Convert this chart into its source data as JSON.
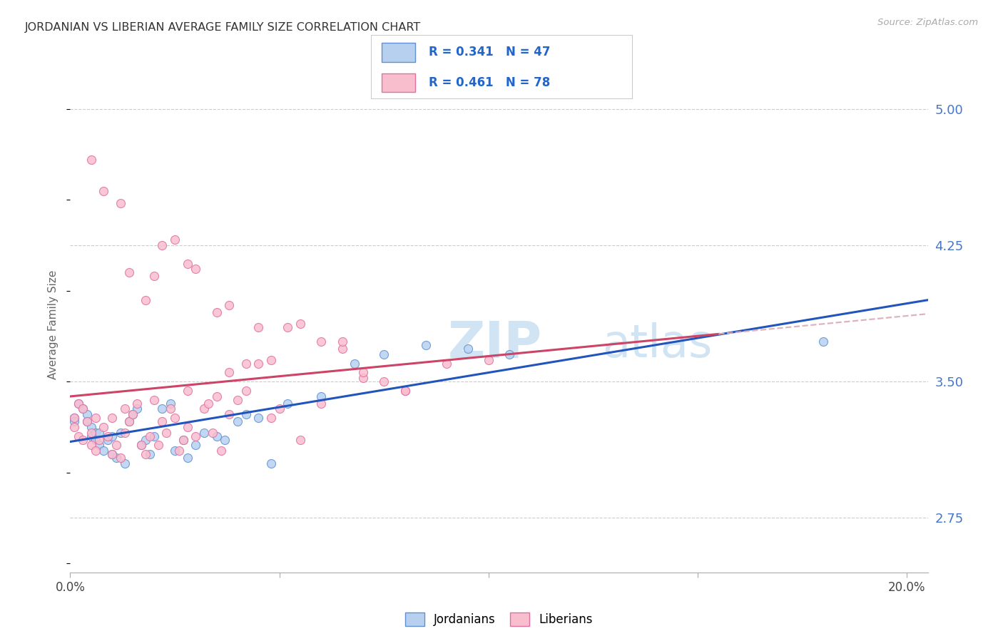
{
  "title": "JORDANIAN VS LIBERIAN AVERAGE FAMILY SIZE CORRELATION CHART",
  "source": "Source: ZipAtlas.com",
  "ylabel": "Average Family Size",
  "xmin": 0.0,
  "xmax": 0.205,
  "ymin": 2.45,
  "ymax": 5.18,
  "ytick_vals": [
    2.75,
    3.5,
    4.25,
    5.0
  ],
  "xtick_positions": [
    0.0,
    0.05,
    0.1,
    0.15,
    0.2
  ],
  "xtick_labels": [
    "0.0%",
    "",
    "",
    "",
    "20.0%"
  ],
  "jordanian_R": "0.341",
  "jordanian_N": "47",
  "liberian_R": "0.461",
  "liberian_N": "78",
  "jordan_face_color": "#b8d0f0",
  "jordan_edge_color": "#6090d0",
  "liberia_face_color": "#f8bece",
  "liberia_edge_color": "#e070a0",
  "jordan_line_color": "#2255bb",
  "liberia_line_color": "#cc4466",
  "dashed_line_color": "#dbaab8",
  "background_color": "#ffffff",
  "grid_color": "#cccccc",
  "title_color": "#333333",
  "right_axis_color": "#4477cc",
  "watermark_color": "#d0e4f4",
  "legend_R_color": "#2266cc",
  "legend_N_color": "#cc2222",
  "scatter_size": 75,
  "jordanians_x": [
    0.001,
    0.001,
    0.002,
    0.003,
    0.004,
    0.004,
    0.005,
    0.005,
    0.006,
    0.006,
    0.007,
    0.007,
    0.008,
    0.009,
    0.01,
    0.01,
    0.011,
    0.012,
    0.013,
    0.014,
    0.015,
    0.016,
    0.017,
    0.018,
    0.019,
    0.02,
    0.022,
    0.024,
    0.025,
    0.027,
    0.028,
    0.03,
    0.032,
    0.035,
    0.037,
    0.04,
    0.042,
    0.045,
    0.048,
    0.052,
    0.06,
    0.068,
    0.075,
    0.085,
    0.095,
    0.105,
    0.18
  ],
  "jordanians_y": [
    3.3,
    3.28,
    3.38,
    3.35,
    3.32,
    3.28,
    3.25,
    3.2,
    3.22,
    3.18,
    3.15,
    3.22,
    3.12,
    3.18,
    3.2,
    3.1,
    3.08,
    3.22,
    3.05,
    3.28,
    3.32,
    3.35,
    3.15,
    3.18,
    3.1,
    3.2,
    3.35,
    3.38,
    3.12,
    3.18,
    3.08,
    3.15,
    3.22,
    3.2,
    3.18,
    3.28,
    3.32,
    3.3,
    3.05,
    3.38,
    3.42,
    3.6,
    3.65,
    3.7,
    3.68,
    3.65,
    3.72
  ],
  "liberians_x": [
    0.001,
    0.001,
    0.002,
    0.002,
    0.003,
    0.003,
    0.004,
    0.005,
    0.005,
    0.006,
    0.006,
    0.007,
    0.008,
    0.009,
    0.01,
    0.01,
    0.011,
    0.012,
    0.013,
    0.013,
    0.014,
    0.015,
    0.016,
    0.017,
    0.018,
    0.019,
    0.02,
    0.021,
    0.022,
    0.023,
    0.024,
    0.025,
    0.026,
    0.027,
    0.028,
    0.03,
    0.032,
    0.033,
    0.034,
    0.035,
    0.036,
    0.038,
    0.04,
    0.042,
    0.045,
    0.048,
    0.05,
    0.055,
    0.06,
    0.065,
    0.07,
    0.075,
    0.08,
    0.09,
    0.1,
    0.038,
    0.042,
    0.052,
    0.065,
    0.08,
    0.02,
    0.025,
    0.03,
    0.018,
    0.014,
    0.022,
    0.028,
    0.035,
    0.045,
    0.055,
    0.005,
    0.008,
    0.012,
    0.06,
    0.07,
    0.048,
    0.038,
    0.028
  ],
  "liberians_y": [
    3.3,
    3.25,
    3.38,
    3.2,
    3.35,
    3.18,
    3.28,
    3.22,
    3.15,
    3.3,
    3.12,
    3.18,
    3.25,
    3.2,
    3.3,
    3.1,
    3.15,
    3.08,
    3.22,
    3.35,
    3.28,
    3.32,
    3.38,
    3.15,
    3.1,
    3.2,
    3.4,
    3.15,
    3.28,
    3.22,
    3.35,
    3.3,
    3.12,
    3.18,
    3.25,
    3.2,
    3.35,
    3.38,
    3.22,
    3.42,
    3.12,
    3.32,
    3.4,
    3.45,
    3.8,
    3.62,
    3.35,
    3.82,
    3.72,
    3.68,
    3.52,
    3.5,
    3.45,
    3.6,
    3.62,
    3.55,
    3.6,
    3.8,
    3.72,
    3.45,
    4.08,
    4.28,
    4.12,
    3.95,
    4.1,
    4.25,
    4.15,
    3.88,
    3.6,
    3.18,
    4.72,
    4.55,
    4.48,
    3.38,
    3.55,
    3.3,
    3.92,
    3.45
  ]
}
